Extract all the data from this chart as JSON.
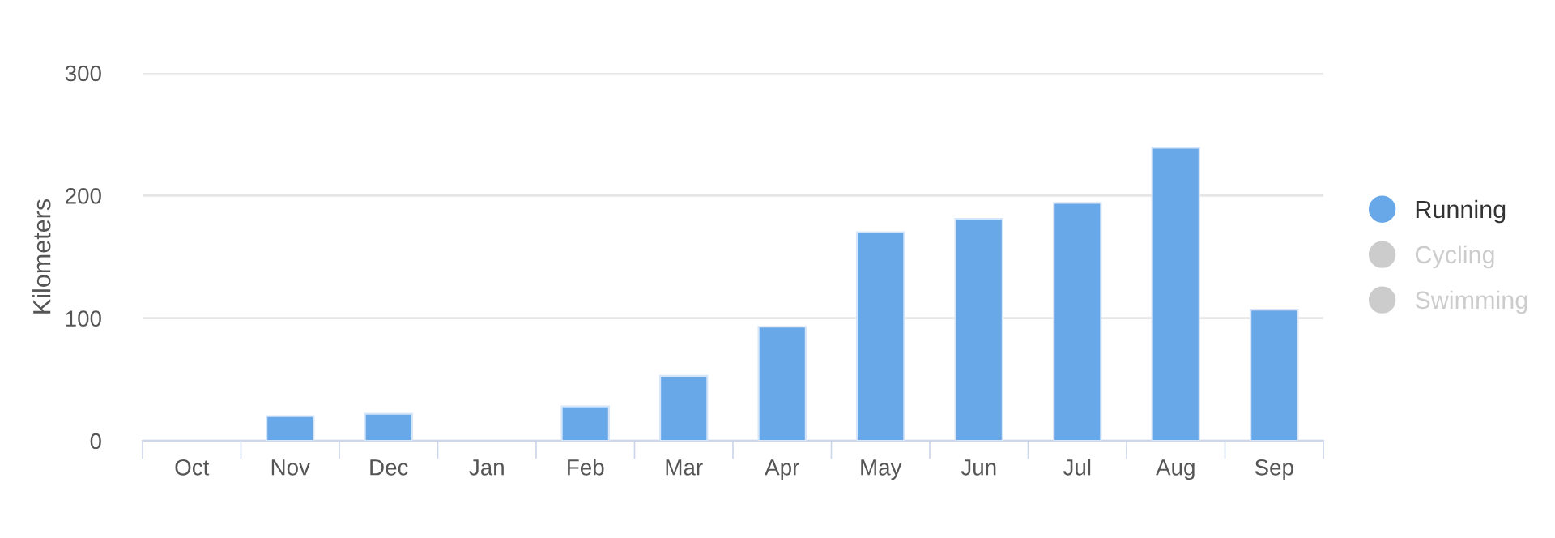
{
  "chart_data": {
    "type": "bar",
    "ylabel": "Kilometers",
    "categories": [
      "Oct",
      "Nov",
      "Dec",
      "Jan",
      "Feb",
      "Mar",
      "Apr",
      "May",
      "Jun",
      "Jul",
      "Aug",
      "Sep"
    ],
    "series": [
      {
        "name": "Running",
        "color": "#68a7e8",
        "values": [
          null,
          20,
          22,
          null,
          28,
          53,
          93,
          170,
          181,
          194,
          239,
          107
        ]
      },
      {
        "name": "Cycling",
        "color": "#cccccc",
        "values": [
          null,
          null,
          null,
          null,
          null,
          null,
          null,
          null,
          null,
          null,
          null,
          null
        ]
      },
      {
        "name": "Swimming",
        "color": "#cccccc",
        "values": [
          null,
          null,
          null,
          null,
          null,
          null,
          null,
          null,
          null,
          null,
          null,
          null
        ]
      }
    ],
    "ylim": [
      0,
      300
    ],
    "yticks": [
      0,
      100,
      200,
      300
    ],
    "grid": "y",
    "legend": "right"
  }
}
